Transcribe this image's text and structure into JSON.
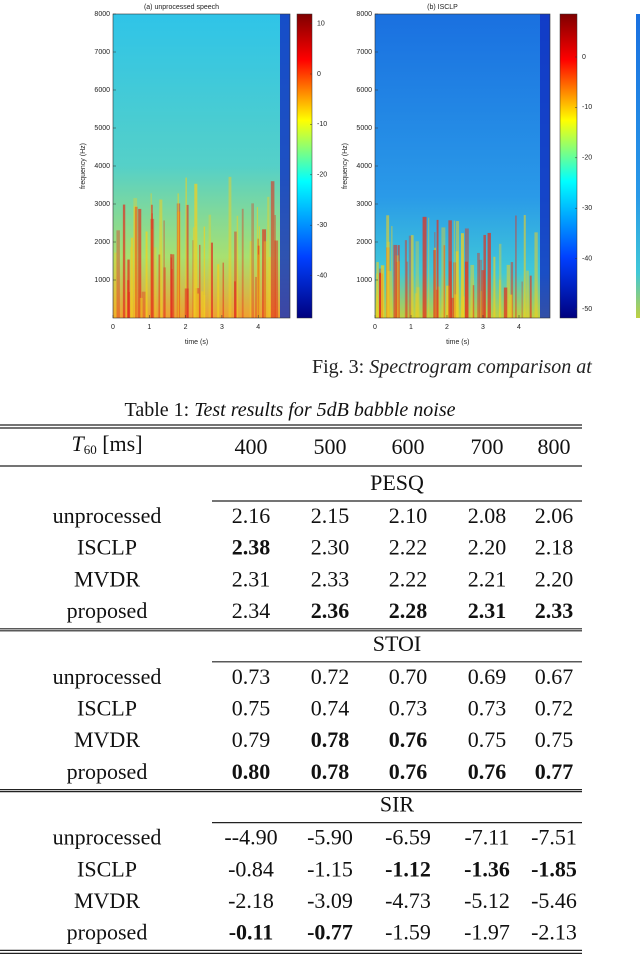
{
  "figure": {
    "panels": [
      {
        "title": "(a) unprocessed speech",
        "ylabel": "frequency (Hz)",
        "xlabel": "time (s)",
        "yticks": [
          1000,
          2000,
          3000,
          4000,
          5000,
          6000,
          7000,
          8000
        ],
        "xticks": [
          0,
          1,
          2,
          3,
          4
        ],
        "colorbar_ticks": [
          10,
          0,
          -10,
          -20,
          -30,
          -40
        ]
      },
      {
        "title": "(b) ISCLP",
        "ylabel": "frequency (Hz)",
        "xlabel": "time (s)",
        "yticks": [
          1000,
          2000,
          3000,
          4000,
          5000,
          6000,
          7000,
          8000
        ],
        "xticks": [
          0,
          1,
          2,
          3,
          4
        ],
        "colorbar_ticks": [
          0,
          -10,
          -20,
          -30,
          -40,
          -50
        ]
      }
    ],
    "caption": {
      "label": "Fig. 3:",
      "text": "Spectrogram comparison at"
    }
  },
  "table": {
    "label": "Table 1:",
    "title": "Test results for 5dB babble noise",
    "header": {
      "symbol": "T",
      "subscript": "60",
      "unit": "[ms]",
      "columns": [
        "400",
        "500",
        "600",
        "700",
        "800"
      ]
    },
    "sections": [
      {
        "name": "PESQ",
        "rows": [
          {
            "label": "unprocessed",
            "values": [
              "2.16",
              "2.15",
              "2.10",
              "2.08",
              "2.06"
            ],
            "bold": []
          },
          {
            "label": "ISCLP",
            "values": [
              "2.38",
              "2.30",
              "2.22",
              "2.20",
              "2.18"
            ],
            "bold": [
              0
            ]
          },
          {
            "label": "MVDR",
            "values": [
              "2.31",
              "2.33",
              "2.22",
              "2.21",
              "2.20"
            ],
            "bold": []
          },
          {
            "label": "proposed",
            "values": [
              "2.34",
              "2.36",
              "2.28",
              "2.31",
              "2.33"
            ],
            "bold": [
              1,
              2,
              3,
              4
            ]
          }
        ]
      },
      {
        "name": "STOI",
        "rows": [
          {
            "label": "unprocessed",
            "values": [
              "0.73",
              "0.72",
              "0.70",
              "0.69",
              "0.67"
            ],
            "bold": []
          },
          {
            "label": "ISCLP",
            "values": [
              "0.75",
              "0.74",
              "0.73",
              "0.73",
              "0.72"
            ],
            "bold": []
          },
          {
            "label": "MVDR",
            "values": [
              "0.79",
              "0.78",
              "0.76",
              "0.75",
              "0.75"
            ],
            "bold": [
              1,
              2
            ]
          },
          {
            "label": "proposed",
            "values": [
              "0.80",
              "0.78",
              "0.76",
              "0.76",
              "0.77"
            ],
            "bold": [
              0,
              1,
              2,
              3,
              4
            ]
          }
        ]
      },
      {
        "name": "SIR",
        "rows": [
          {
            "label": "unprocessed",
            "values": [
              "--4.90",
              "-5.90",
              "-6.59",
              "-7.11",
              "-7.51"
            ],
            "bold": []
          },
          {
            "label": "ISCLP",
            "values": [
              "-0.84",
              "-1.15",
              "-1.12",
              "-1.36",
              "-1.85"
            ],
            "bold": [
              2,
              3,
              4
            ]
          },
          {
            "label": "MVDR",
            "values": [
              "-2.18",
              "-3.09",
              "-4.73",
              "-5.12",
              "-5.46"
            ],
            "bold": []
          },
          {
            "label": "proposed",
            "values": [
              "-0.11",
              "-0.77",
              "-1.59",
              "-1.97",
              "-2.13"
            ],
            "bold": [
              0,
              1
            ]
          }
        ]
      }
    ]
  }
}
